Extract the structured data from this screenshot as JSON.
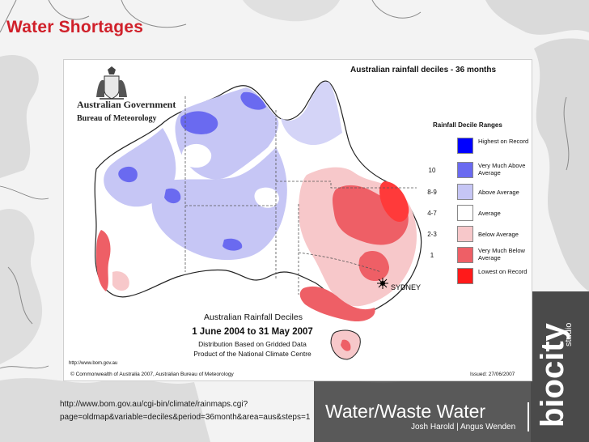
{
  "slide": {
    "title": "Water Shortages",
    "source_url": "http://www.bom.gov.au/cgi-bin/climate/rainmaps.cgi?page=oldmap&variable=deciles&period=36month&area=aus&steps=1",
    "footer_title": "Water/Waste Water",
    "footer_authors": "Josh Harold | Angus Wenden",
    "brand_text": "biocity",
    "brand_sub": "studio"
  },
  "figure": {
    "header_title": "Australian rainfall deciles - 36 months",
    "gov_name": "Australian Government",
    "bureau": "Bureau of Meteorology",
    "caption_title": "Australian Rainfall Deciles",
    "caption_dates": "1 June 2004 to 31 May 2007",
    "caption_distribution": "Distribution Based on Gridded Data",
    "caption_product": "Product of the National Climate Centre",
    "source_small": "http://www.bom.gov.au",
    "copyright": "© Commonwealth of Australia 2007, Australian Bureau of Meteorology",
    "issued": "Issued: 27/06/2007",
    "city_label": "SYDNEY"
  },
  "legend": {
    "title": "Rainfall Decile Ranges",
    "items": [
      {
        "code": "",
        "label": "Highest on Record",
        "color": "#0000ff"
      },
      {
        "code": "10",
        "label": "Very Much Above Average",
        "color": "#6a6af0"
      },
      {
        "code": "8-9",
        "label": "Above Average",
        "color": "#c6c6f5"
      },
      {
        "code": "4-7",
        "label": "Average",
        "color": "#ffffff"
      },
      {
        "code": "2-3",
        "label": "Below Average",
        "color": "#f7c8ca"
      },
      {
        "code": "1",
        "label": "Very Much Below Average",
        "color": "#ee5f66"
      },
      {
        "code": "",
        "label": "Lowest on Record",
        "color": "#ff1a1a"
      }
    ]
  }
}
